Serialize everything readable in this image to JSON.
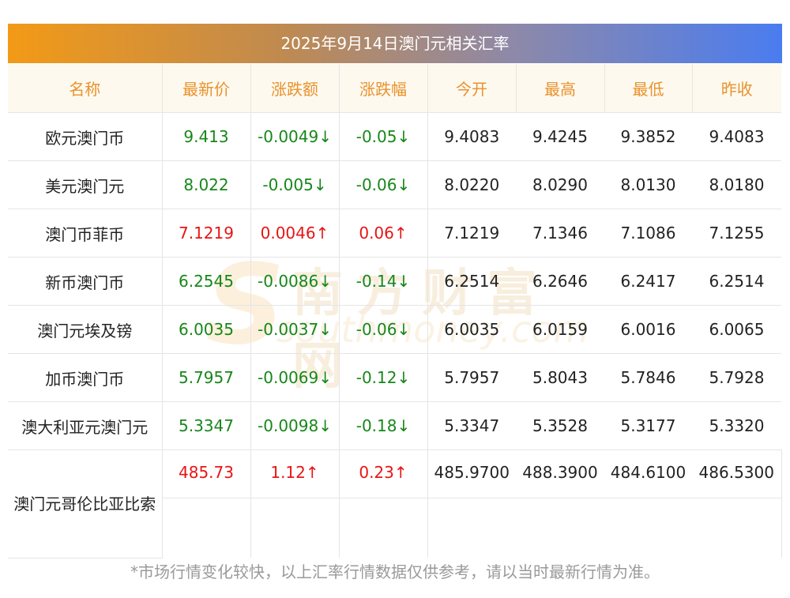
{
  "title": "2025年9月14日澳门元相关汇率",
  "headers": [
    "名称",
    "最新价",
    "涨跌额",
    "涨跌幅",
    "今开",
    "最高",
    "最低",
    "昨收"
  ],
  "rows": [
    {
      "name": "欧元澳门币",
      "price": "9.413",
      "change": "-0.0049↓",
      "pct": "-0.05↓",
      "open": "9.4083",
      "high": "9.4245",
      "low": "9.3852",
      "prev": "9.4083",
      "dir": "down"
    },
    {
      "name": "美元澳门元",
      "price": "8.022",
      "change": "-0.005↓",
      "pct": "-0.06↓",
      "open": "8.0220",
      "high": "8.0290",
      "low": "8.0130",
      "prev": "8.0180",
      "dir": "down"
    },
    {
      "name": "澳门币菲币",
      "price": "7.1219",
      "change": "0.0046↑",
      "pct": "0.06↑",
      "open": "7.1219",
      "high": "7.1346",
      "low": "7.1086",
      "prev": "7.1255",
      "dir": "up"
    },
    {
      "name": "新币澳门币",
      "price": "6.2545",
      "change": "-0.0086↓",
      "pct": "-0.14↓",
      "open": "6.2514",
      "high": "6.2646",
      "low": "6.2417",
      "prev": "6.2514",
      "dir": "down"
    },
    {
      "name": "澳门元埃及镑",
      "price": "6.0035",
      "change": "-0.0037↓",
      "pct": "-0.06↓",
      "open": "6.0035",
      "high": "6.0159",
      "low": "6.0016",
      "prev": "6.0065",
      "dir": "down"
    },
    {
      "name": "加币澳门币",
      "price": "5.7957",
      "change": "-0.0069↓",
      "pct": "-0.12↓",
      "open": "5.7957",
      "high": "5.8043",
      "low": "5.7846",
      "prev": "5.7928",
      "dir": "down"
    },
    {
      "name": "澳大利亚元澳门元",
      "price": "5.3347",
      "change": "-0.0098↓",
      "pct": "-0.18↓",
      "open": "5.3347",
      "high": "5.3528",
      "low": "5.3177",
      "prev": "5.3320",
      "dir": "down"
    },
    {
      "name": "澳门元哥伦比亚比索",
      "price": "485.73",
      "change": "1.12↑",
      "pct": "0.23↑",
      "open": "485.9700",
      "high": "488.3900",
      "low": "484.6100",
      "prev": "486.5300",
      "dir": "up"
    }
  ],
  "watermark": {
    "cn": "南方财富网",
    "en": "southmoney.com",
    "letter": "S"
  },
  "note": "*市场行情变化较快，以上汇率行情数据仅供参考，请以当时最新行情为准。",
  "colors": {
    "up": "#e81414",
    "down": "#17871a",
    "header_text": "#e9922c",
    "header_bg": "#fdf9ef",
    "gradient_start": "#f39a16",
    "gradient_end": "#4a7cf0"
  }
}
